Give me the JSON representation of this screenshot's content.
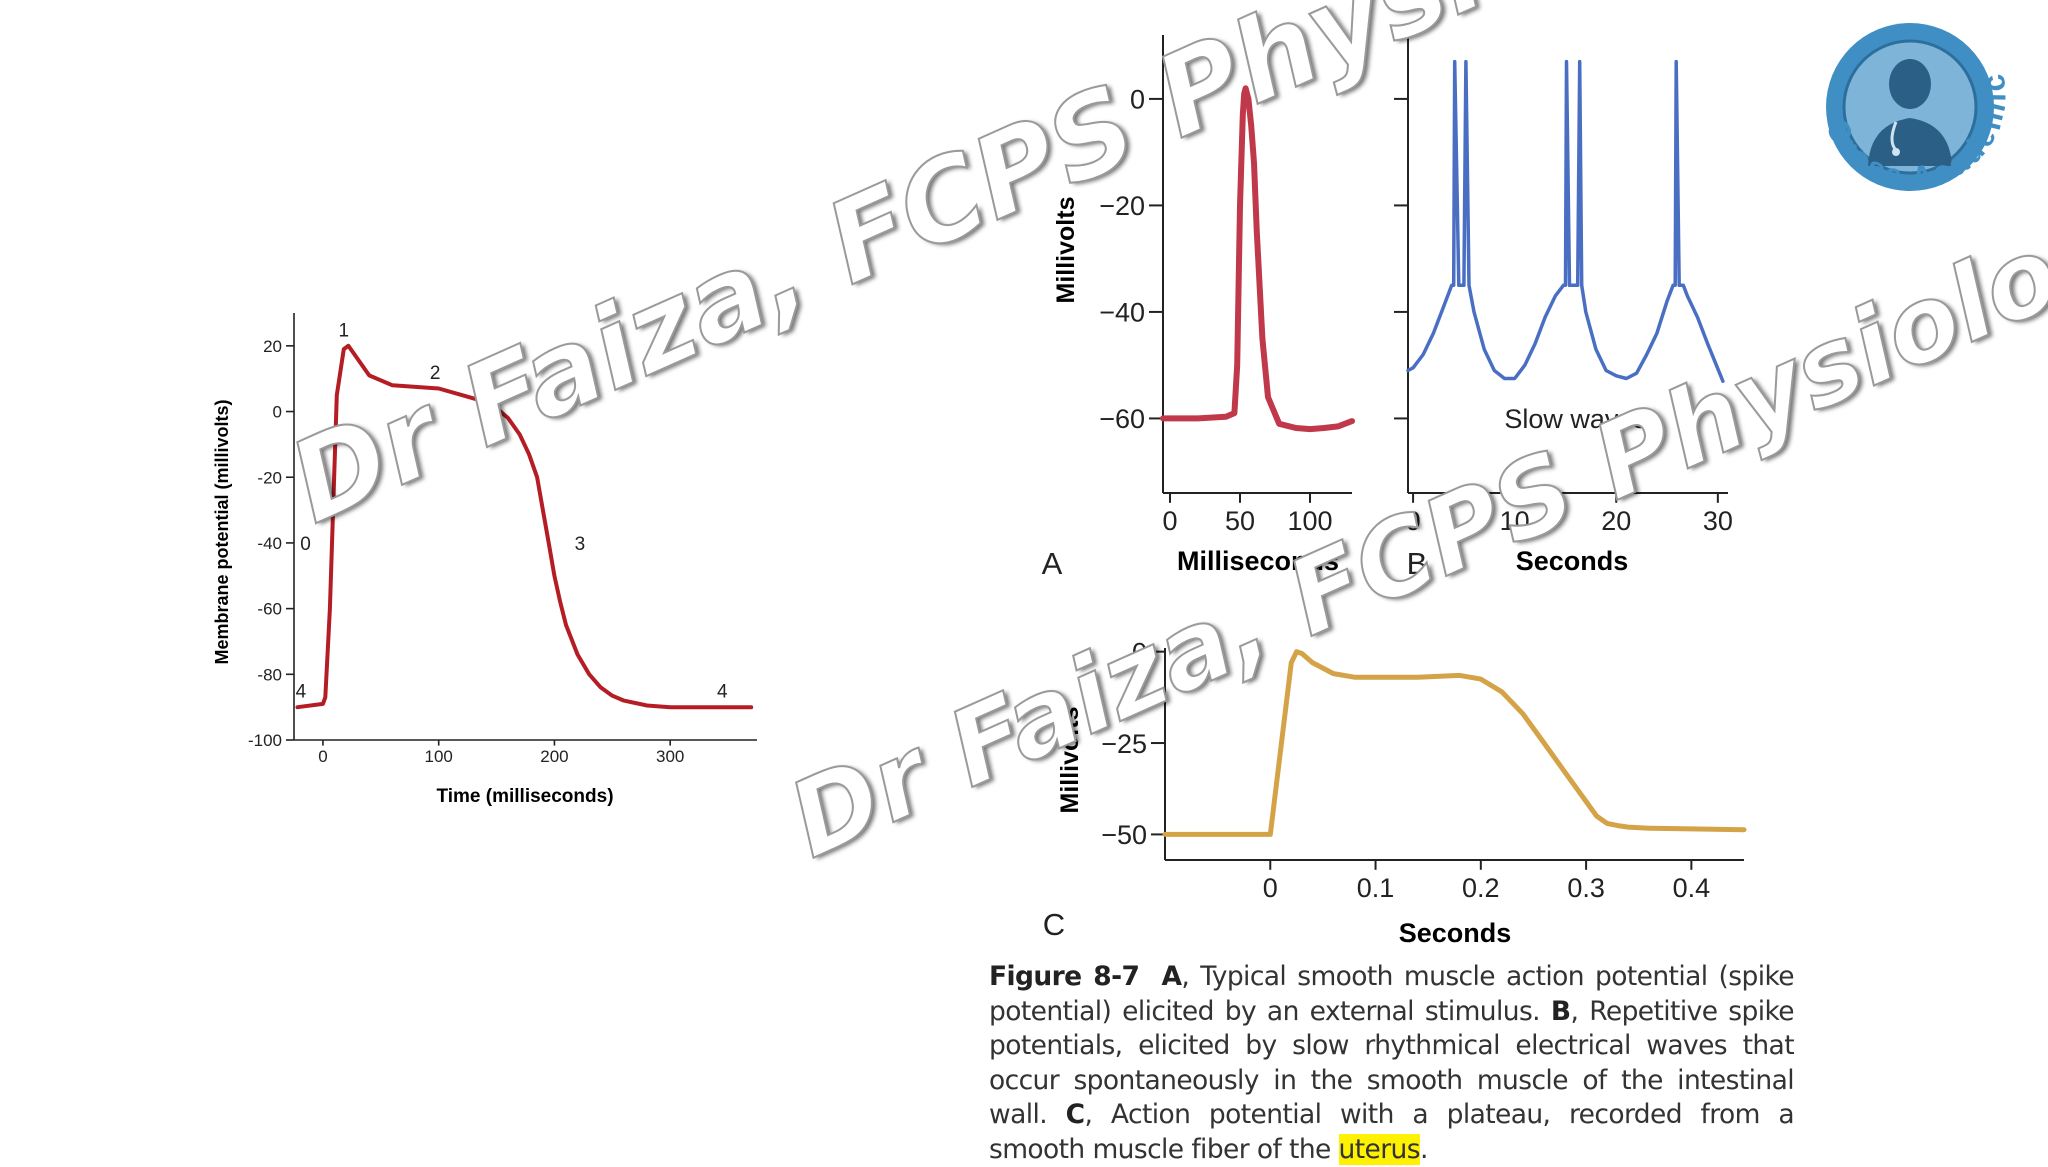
{
  "chart_data": [
    {
      "type": "line",
      "title": "",
      "xlabel": "Time (milliseconds)",
      "ylabel": "Membrane potential (millivolts)",
      "xlim": [
        -25,
        375
      ],
      "ylim": [
        -100,
        30
      ],
      "xticks": [
        0,
        100,
        200,
        300
      ],
      "yticks": [
        20,
        0,
        -20,
        -40,
        -60,
        -80,
        -100
      ],
      "xtick_labels": [
        "0",
        "100",
        "200",
        "300"
      ],
      "ytick_labels": [
        "20",
        "0",
        "-20",
        "-40",
        "-60",
        "-80",
        "-100"
      ],
      "grid": false,
      "color": "#b51d24",
      "series": [
        {
          "x": [
            -22,
            0,
            2,
            6,
            12,
            18,
            22,
            30,
            40,
            60,
            80,
            100,
            120,
            140,
            150,
            160,
            170,
            178,
            185,
            190,
            195,
            200,
            205,
            210,
            220,
            230,
            240,
            250,
            260,
            280,
            300,
            330,
            370
          ],
          "y": [
            -90,
            -89,
            -87,
            -60,
            5,
            19,
            20,
            16,
            11,
            8,
            7.5,
            7,
            5,
            3,
            1,
            -2,
            -7,
            -13,
            -20,
            -30,
            -40,
            -50,
            -58,
            -65,
            -74,
            -80,
            -84,
            -86.5,
            -88,
            -89.5,
            -90,
            -90,
            -90
          ]
        }
      ],
      "annotations": [
        {
          "text": "0",
          "x": -15,
          "y": -40
        },
        {
          "text": "1",
          "x": 18,
          "y": 25
        },
        {
          "text": "2",
          "x": 97,
          "y": 12
        },
        {
          "text": "3",
          "x": 222,
          "y": -40
        },
        {
          "text": "4",
          "x": -19,
          "y": -85
        },
        {
          "text": "4",
          "x": 345,
          "y": -85
        }
      ]
    },
    {
      "type": "line",
      "panel": "A",
      "xlabel": "Milliseconds",
      "ylabel": "Millivolts",
      "xlim": [
        -5,
        130
      ],
      "ylim": [
        -74,
        12
      ],
      "xticks": [
        0,
        50,
        100
      ],
      "yticks": [
        0,
        -20,
        -40,
        -60
      ],
      "xtick_labels": [
        "0",
        "50",
        "100"
      ],
      "ytick_labels": [
        "0",
        "−20",
        "−40",
        "−60"
      ],
      "color": "#c0394a",
      "series": [
        {
          "x": [
            -5,
            20,
            40,
            46,
            48,
            50,
            52,
            53,
            54,
            56,
            58,
            60,
            62,
            66,
            70,
            78,
            90,
            100,
            110,
            120,
            130
          ],
          "y": [
            -60,
            -60,
            -59.7,
            -59,
            -50,
            -20,
            -3,
            1,
            2,
            0,
            -5,
            -12,
            -25,
            -45,
            -56,
            -61,
            -61.8,
            -62,
            -61.8,
            -61.5,
            -60.5
          ]
        }
      ]
    },
    {
      "type": "line",
      "panel": "B",
      "xlabel": "Seconds",
      "ylabel": "",
      "xlim": [
        -0.5,
        31
      ],
      "ylim": [
        -74,
        12
      ],
      "xticks": [
        0,
        10,
        20,
        30
      ],
      "xtick_labels": [
        "0",
        "10",
        "20",
        "30"
      ],
      "color": "#4a6fc2",
      "annotations": [
        {
          "text": "Slow waves",
          "x": 16,
          "y": -60
        }
      ],
      "series": [
        {
          "x": [
            -0.5,
            0,
            1,
            2,
            3,
            3.8,
            4.0,
            4.1,
            4.5,
            5.0,
            5.2,
            5.5,
            6,
            7,
            8,
            9,
            10,
            11,
            12,
            13,
            14,
            14.8,
            15.0,
            15.1,
            15.4,
            16.2,
            16.4,
            16.6,
            17,
            18,
            19,
            20,
            21,
            22,
            23,
            24,
            25,
            25.6,
            25.8,
            25.9,
            26.2,
            26.6,
            27,
            28,
            29,
            30.5
          ],
          "y": [
            -51,
            -50.5,
            -48,
            -44,
            -39,
            -35,
            -35,
            7,
            -35,
            -35,
            7,
            -35,
            -40,
            -47,
            -51,
            -52.5,
            -52.5,
            -50,
            -46,
            -41,
            -37,
            -35,
            -35,
            7,
            -35,
            -35,
            7,
            -35,
            -40,
            -47,
            -51,
            -52,
            -52.5,
            -51.5,
            -48,
            -44,
            -38,
            -35,
            -35,
            7,
            -35,
            -35,
            -37,
            -41,
            -46,
            -53
          ]
        }
      ]
    },
    {
      "type": "line",
      "panel": "C",
      "xlabel": "Seconds",
      "ylabel": "Millivolts",
      "xlim": [
        -0.1,
        0.45
      ],
      "ylim": [
        -57,
        1
      ],
      "xticks": [
        0,
        0.1,
        0.2,
        0.3,
        0.4
      ],
      "yticks": [
        0,
        -25,
        -50
      ],
      "xtick_labels": [
        "0",
        "0.1",
        "0.2",
        "0.3",
        "0.4"
      ],
      "ytick_labels": [
        "0",
        "−25",
        "−50"
      ],
      "color": "#d4a347",
      "series": [
        {
          "x": [
            -0.1,
            -0.001,
            0.0,
            0.02,
            0.025,
            0.03,
            0.04,
            0.06,
            0.08,
            0.1,
            0.14,
            0.18,
            0.2,
            0.22,
            0.24,
            0.26,
            0.28,
            0.3,
            0.31,
            0.32,
            0.33,
            0.34,
            0.36,
            0.4,
            0.45
          ],
          "y": [
            -50,
            -50,
            -50,
            -3,
            0,
            -0.5,
            -3,
            -6,
            -7,
            -7,
            -7,
            -6.5,
            -7.5,
            -11,
            -17,
            -25,
            -33,
            -41,
            -45,
            -47,
            -47.6,
            -48,
            -48.3,
            -48.5,
            -48.7
          ]
        }
      ]
    }
  ],
  "labels": {
    "panel_a": "A",
    "panel_b": "B",
    "panel_c": "C"
  },
  "caption": {
    "figure_no": "Figure 8-7",
    "a": "A",
    "a_text": ", Typical smooth muscle action potential (spike potential) elicited by an external stimulus. ",
    "b": "B",
    "b_text": ", Repetitive spike potentials, elicited by slow rhythmical electrical waves that occur spontaneously in the smooth muscle of the intestinal wall. ",
    "c": "C",
    "c_text": ", Action potential with a plateau, recorded from a smooth muscle fiber of the ",
    "highlight": "uterus",
    "end": "."
  },
  "watermark": {
    "text1": "Dr Faiza, FCPS Physiology",
    "text2": "Dr Faiza, FCPS Physiology"
  },
  "logo": {
    "text": "Crose Academics",
    "ring_color": "#3f8fc4",
    "icon": "doctor-avatar-icon"
  }
}
